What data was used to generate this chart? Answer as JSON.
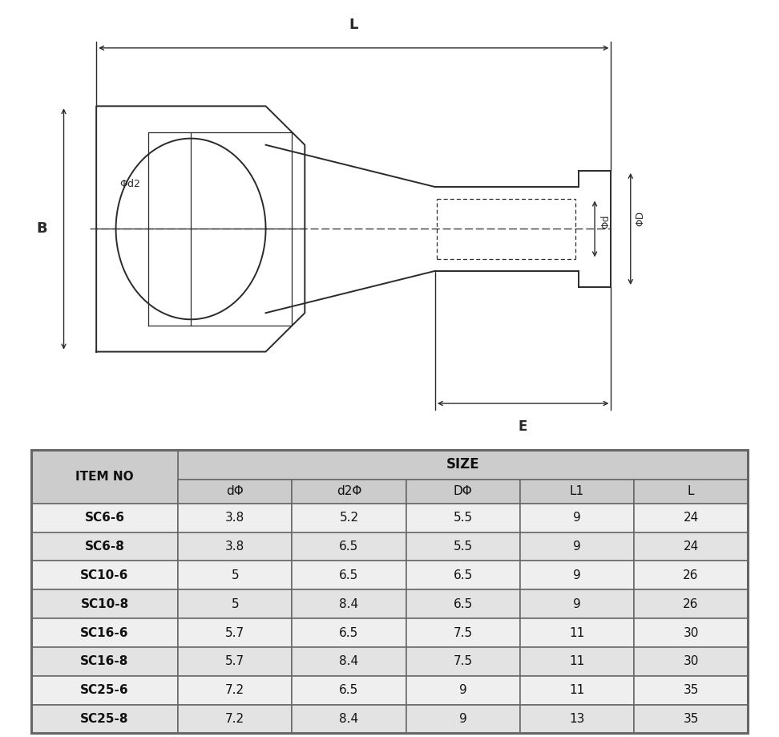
{
  "table_headers": [
    "ITEM NO",
    "dΦ",
    "d2Φ",
    "DΦ",
    "L1",
    "L"
  ],
  "table_data": [
    [
      "SC6-6",
      "3.8",
      "5.2",
      "5.5",
      "9",
      "24"
    ],
    [
      "SC6-8",
      "3.8",
      "6.5",
      "5.5",
      "9",
      "24"
    ],
    [
      "SC10-6",
      "5",
      "6.5",
      "6.5",
      "9",
      "26"
    ],
    [
      "SC10-8",
      "5",
      "8.4",
      "6.5",
      "9",
      "26"
    ],
    [
      "SC16-6",
      "5.7",
      "6.5",
      "7.5",
      "11",
      "30"
    ],
    [
      "SC16-8",
      "5.7",
      "8.4",
      "7.5",
      "11",
      "30"
    ],
    [
      "SC25-6",
      "7.2",
      "6.5",
      "9",
      "11",
      "35"
    ],
    [
      "SC25-8",
      "7.2",
      "8.4",
      "9",
      "13",
      "35"
    ]
  ],
  "header_bg": "#cccccc",
  "row_bg_odd": "#efefef",
  "row_bg_even": "#e3e3e3",
  "border_color": "#666666",
  "text_color": "#111111",
  "diagram_line_color": "#2a2a2a",
  "bg_color": "#ffffff",
  "size_label": "SIZE"
}
